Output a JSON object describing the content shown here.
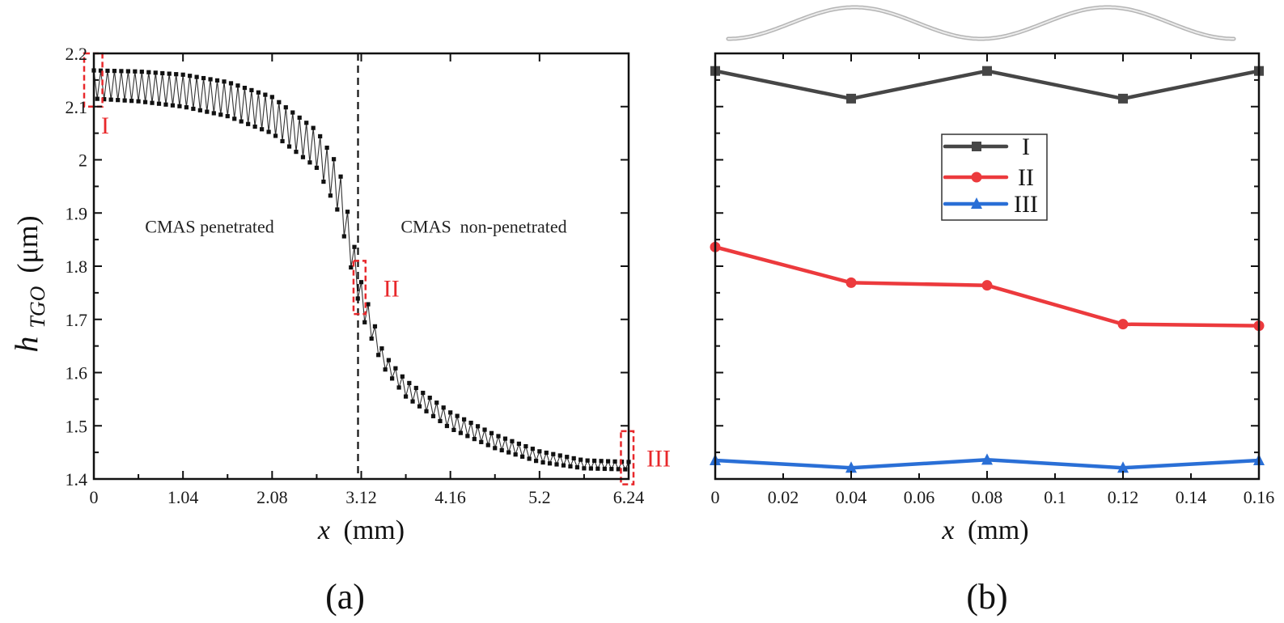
{
  "chart_data": [
    {
      "panel": "(a)",
      "type": "line",
      "title": "",
      "xlabel_italic": "x",
      "xlabel_unit": "(mm)",
      "ylabel_main": "h",
      "ylabel_sub": "TGO",
      "ylabel_unit": "(μm)",
      "xlim": [
        0,
        6.24
      ],
      "ylim": [
        1.4,
        2.2
      ],
      "xticks": [
        0,
        1.04,
        2.08,
        3.12,
        4.16,
        5.2,
        6.24
      ],
      "xtick_labels": [
        "0",
        "1.04",
        "2.08",
        "3.12",
        "4.16",
        "5.2",
        "6.24"
      ],
      "yticks": [
        1.4,
        1.5,
        1.6,
        1.7,
        1.8,
        1.9,
        2.0,
        2.1,
        2.2
      ],
      "ytick_labels": [
        "1.4",
        "1.5",
        "1.6",
        "1.7",
        "1.8",
        "1.9",
        "2",
        "2.1",
        "2.2"
      ],
      "grid": false,
      "series": [
        {
          "name": "h_TGO",
          "color": "#111111",
          "marker": "square",
          "description": "oscillating thickness with period 0.08 mm; peak and trough envelopes listed at control points",
          "period_mm": 0.08,
          "envelope_x": [
            0,
            0.52,
            1.04,
            1.56,
            2.08,
            2.6,
            2.86,
            3.12,
            3.38,
            3.64,
            4.16,
            4.68,
            5.2,
            5.72,
            6.24
          ],
          "peak_envelope": [
            2.168,
            2.166,
            2.16,
            2.146,
            2.118,
            2.055,
            1.985,
            1.77,
            1.635,
            1.585,
            1.525,
            1.483,
            1.452,
            1.435,
            1.432
          ],
          "trough_envelope": [
            2.115,
            2.11,
            2.1,
            2.082,
            2.05,
            1.985,
            1.9,
            1.71,
            1.61,
            1.555,
            1.495,
            1.458,
            1.432,
            1.42,
            1.418
          ]
        }
      ],
      "annotations": [
        {
          "text": "CMAS penetrated",
          "x": 1.35,
          "y": 1.875
        },
        {
          "text": "CMAS  non-penetrated",
          "x": 4.55,
          "y": 1.875
        }
      ],
      "divider": {
        "x": 3.12,
        "style": "dashed"
      },
      "regions": [
        {
          "label": "I",
          "x_range": [
            0,
            0.1
          ],
          "y_range": [
            2.1,
            2.2
          ],
          "color": "#e8282b"
        },
        {
          "label": "II",
          "x_range": [
            3.03,
            3.17
          ],
          "y_range": [
            1.71,
            1.81
          ],
          "color": "#e8282b"
        },
        {
          "label": "III",
          "x_range": [
            6.15,
            6.24
          ],
          "y_range": [
            1.39,
            1.49
          ],
          "color": "#e8282b"
        }
      ],
      "panel_label": "(a)"
    },
    {
      "panel": "(b)",
      "type": "line",
      "title": "",
      "xlabel_italic": "x",
      "xlabel_unit": "(mm)",
      "ylabel": "",
      "xlim": [
        0,
        0.16
      ],
      "ylim": [
        1.4,
        2.2
      ],
      "xticks": [
        0,
        0.02,
        0.04,
        0.06,
        0.08,
        0.1,
        0.12,
        0.14,
        0.16
      ],
      "xtick_labels": [
        "0",
        "0.02",
        "0.04",
        "0.06",
        "0.08",
        "0.1",
        "0.12",
        "0.14",
        "0.16"
      ],
      "ytick_labels_shown": false,
      "grid": false,
      "legend_position": "center",
      "x": [
        0,
        0.04,
        0.08,
        0.12,
        0.16
      ],
      "series": [
        {
          "name": "I",
          "color": "#464646",
          "marker": "square",
          "values": [
            2.167,
            2.115,
            2.167,
            2.115,
            2.167
          ]
        },
        {
          "name": "II",
          "color": "#ec3a3d",
          "marker": "circle",
          "values": [
            1.836,
            1.769,
            1.764,
            1.691,
            1.688
          ]
        },
        {
          "name": "III",
          "color": "#2a6fd6",
          "marker": "triangle",
          "values": [
            1.435,
            1.421,
            1.436,
            1.421,
            1.435
          ]
        }
      ],
      "inset_wave": {
        "description": "schematic wavy interface, two periods",
        "color": "#bdbdbd"
      },
      "panel_label": "(b)"
    }
  ]
}
